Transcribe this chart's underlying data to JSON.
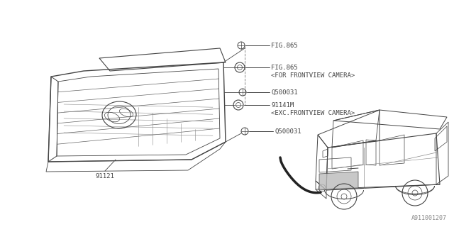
{
  "bg_color": "#ffffff",
  "line_color": "#444444",
  "text_color": "#444444",
  "watermark": "A911001207",
  "labels": {
    "fig865_1": "FIG.865",
    "fig865_2": "FIG.865",
    "fig865_2b": "<FOR FRONTVIEW CAMERA>",
    "q500031_1": "Q500031",
    "p91141m": "91141M",
    "p91141m_b": "<EXC.FRONTVIEW CAMERA>",
    "q500031_2": "Q500031",
    "p91121": "91121"
  },
  "font_size": 6.5,
  "fig_width": 6.4,
  "fig_height": 3.2,
  "dpi": 100
}
